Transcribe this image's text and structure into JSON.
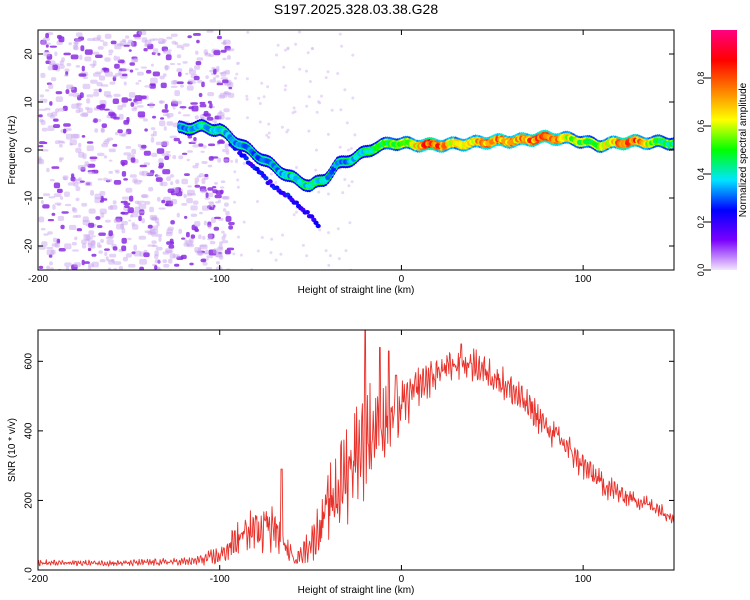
{
  "title": "S197.2025.328.03.38.G28",
  "chart_data": [
    {
      "type": "heatmap",
      "name": "spectrogram",
      "xlabel": "Height of straight line (km)",
      "ylabel": "Frequency (Hz)",
      "xlim": [
        -200,
        150
      ],
      "ylim": [
        -25,
        25
      ],
      "xticks": [
        -200,
        -100,
        0,
        100
      ],
      "yticks": [
        -20,
        -10,
        0,
        10,
        20
      ],
      "colorbar": {
        "label": "Normalized spectral amplitude",
        "range": [
          0,
          1
        ],
        "ticks": [
          0.0,
          0.2,
          0.4,
          0.6,
          0.8
        ],
        "tick_labels": [
          "0.0",
          "0.2",
          "0.4",
          "0.6",
          "0.8"
        ],
        "stops": [
          "#f3e6ff",
          "#7a00ff",
          "#0000ff",
          "#00e5ff",
          "#00ff00",
          "#ffff00",
          "#ff7f00",
          "#ff0000",
          "#ff0080"
        ]
      },
      "ridge": [
        {
          "x": -122,
          "f": 4.5,
          "a": 0.3
        },
        {
          "x": -110,
          "f": 4.8,
          "a": 0.35
        },
        {
          "x": -100,
          "f": 4.2,
          "a": 0.4
        },
        {
          "x": -92,
          "f": 2.0,
          "a": 0.3
        },
        {
          "x": -82,
          "f": -0.5,
          "a": 0.3
        },
        {
          "x": -72,
          "f": -3.0,
          "a": 0.3
        },
        {
          "x": -62,
          "f": -5.5,
          "a": 0.35
        },
        {
          "x": -50,
          "f": -7.5,
          "a": 0.4
        },
        {
          "x": -42,
          "f": -6.0,
          "a": 0.35
        },
        {
          "x": -35,
          "f": -3.0,
          "a": 0.3
        },
        {
          "x": -25,
          "f": -1.5,
          "a": 0.35
        },
        {
          "x": -15,
          "f": 0.5,
          "a": 0.45
        },
        {
          "x": -5,
          "f": 1.5,
          "a": 0.5
        },
        {
          "x": 5,
          "f": 1.2,
          "a": 0.55
        },
        {
          "x": 15,
          "f": 1.0,
          "a": 0.85
        },
        {
          "x": 30,
          "f": 1.2,
          "a": 0.6
        },
        {
          "x": 50,
          "f": 1.8,
          "a": 0.75
        },
        {
          "x": 65,
          "f": 2.0,
          "a": 0.7
        },
        {
          "x": 80,
          "f": 2.6,
          "a": 0.8
        },
        {
          "x": 95,
          "f": 2.2,
          "a": 0.55
        },
        {
          "x": 108,
          "f": 1.0,
          "a": 0.5
        },
        {
          "x": 125,
          "f": 1.7,
          "a": 0.85
        },
        {
          "x": 140,
          "f": 1.6,
          "a": 0.5
        },
        {
          "x": 150,
          "f": 1.5,
          "a": 0.45
        }
      ],
      "branch": [
        {
          "x": -95,
          "f": 2.0
        },
        {
          "x": -85,
          "f": -2.0
        },
        {
          "x": -75,
          "f": -6.0
        },
        {
          "x": -65,
          "f": -9.0
        },
        {
          "x": -55,
          "f": -12.0
        },
        {
          "x": -45,
          "f": -16.0
        }
      ]
    },
    {
      "type": "line",
      "name": "snr",
      "xlabel": "Height of straight line (km)",
      "ylabel": "SNR (10 * v/v)",
      "xlim": [
        -200,
        150
      ],
      "ylim": [
        0,
        690
      ],
      "xticks": [
        -200,
        -100,
        0,
        100
      ],
      "yticks": [
        0,
        200,
        400,
        600
      ],
      "color": "#e8312a",
      "envelope": [
        {
          "x": -200,
          "y": 20,
          "s": 12
        },
        {
          "x": -150,
          "y": 20,
          "s": 12
        },
        {
          "x": -115,
          "y": 25,
          "s": 15
        },
        {
          "x": -100,
          "y": 40,
          "s": 35
        },
        {
          "x": -90,
          "y": 90,
          "s": 70
        },
        {
          "x": -80,
          "y": 120,
          "s": 90
        },
        {
          "x": -72,
          "y": 140,
          "s": 110
        },
        {
          "x": -65,
          "y": 70,
          "s": 50
        },
        {
          "x": -58,
          "y": 30,
          "s": 20
        },
        {
          "x": -48,
          "y": 90,
          "s": 80
        },
        {
          "x": -40,
          "y": 180,
          "s": 140
        },
        {
          "x": -32,
          "y": 260,
          "s": 180
        },
        {
          "x": -25,
          "y": 340,
          "s": 200
        },
        {
          "x": -20,
          "y": 380,
          "s": 210
        },
        {
          "x": -15,
          "y": 400,
          "s": 190
        },
        {
          "x": -10,
          "y": 420,
          "s": 150
        },
        {
          "x": -5,
          "y": 430,
          "s": 120
        },
        {
          "x": 0,
          "y": 470,
          "s": 100
        },
        {
          "x": 10,
          "y": 530,
          "s": 80
        },
        {
          "x": 20,
          "y": 570,
          "s": 65
        },
        {
          "x": 30,
          "y": 590,
          "s": 60
        },
        {
          "x": 40,
          "y": 590,
          "s": 60
        },
        {
          "x": 50,
          "y": 560,
          "s": 60
        },
        {
          "x": 60,
          "y": 520,
          "s": 60
        },
        {
          "x": 70,
          "y": 470,
          "s": 60
        },
        {
          "x": 80,
          "y": 410,
          "s": 60
        },
        {
          "x": 90,
          "y": 360,
          "s": 60
        },
        {
          "x": 100,
          "y": 300,
          "s": 55
        },
        {
          "x": 110,
          "y": 250,
          "s": 50
        },
        {
          "x": 120,
          "y": 220,
          "s": 40
        },
        {
          "x": 130,
          "y": 200,
          "s": 35
        },
        {
          "x": 140,
          "y": 180,
          "s": 30
        },
        {
          "x": 150,
          "y": 150,
          "s": 25
        }
      ],
      "spikes": [
        {
          "x": -66,
          "y": 290
        },
        {
          "x": -20,
          "y": 690
        },
        {
          "x": -12,
          "y": 640
        },
        {
          "x": -7,
          "y": 630
        },
        {
          "x": -3,
          "y": 560
        },
        {
          "x": 33,
          "y": 650
        }
      ]
    }
  ]
}
